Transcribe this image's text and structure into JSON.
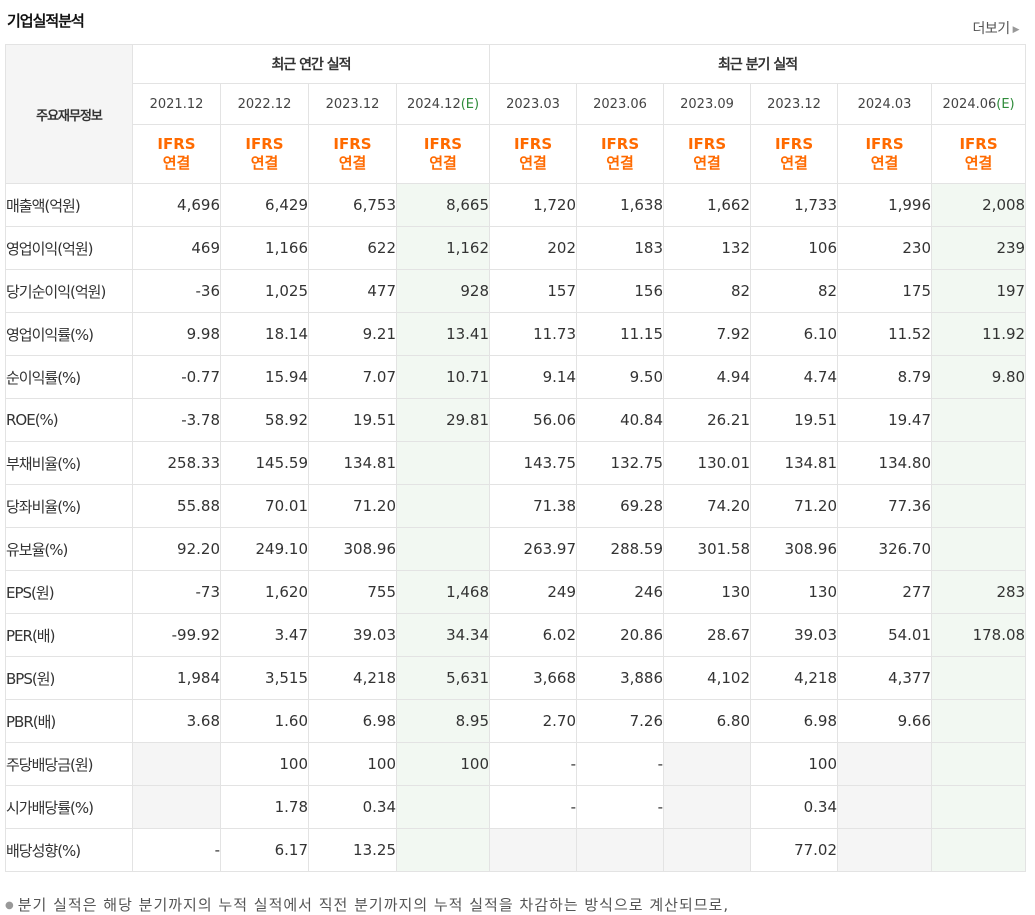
{
  "header": {
    "title": "기업실적분석",
    "more_label": "더보기"
  },
  "table": {
    "row_header": "주요재무정보",
    "groups": {
      "annual": "최근 연간 실적",
      "quarterly": "최근 분기 실적"
    },
    "periods": [
      "2021.12",
      "2022.12",
      "2023.12",
      "2024.12",
      "2023.03",
      "2023.06",
      "2023.09",
      "2023.12",
      "2024.03",
      "2024.06"
    ],
    "estimate_mark": "(E)",
    "ifrs_top": "IFRS",
    "ifrs_bottom": "연결",
    "rows": [
      {
        "label": "매출액(억원)",
        "values": [
          "4,696",
          "6,429",
          "6,753",
          "8,665",
          "1,720",
          "1,638",
          "1,662",
          "1,733",
          "1,996",
          "2,008"
        ]
      },
      {
        "label": "영업이익(억원)",
        "values": [
          "469",
          "1,166",
          "622",
          "1,162",
          "202",
          "183",
          "132",
          "106",
          "230",
          "239"
        ]
      },
      {
        "label": "당기순이익(억원)",
        "values": [
          "-36",
          "1,025",
          "477",
          "928",
          "157",
          "156",
          "82",
          "82",
          "175",
          "197"
        ]
      },
      {
        "label": "영업이익률(%)",
        "values": [
          "9.98",
          "18.14",
          "9.21",
          "13.41",
          "11.73",
          "11.15",
          "7.92",
          "6.10",
          "11.52",
          "11.92"
        ]
      },
      {
        "label": "순이익률(%)",
        "values": [
          "-0.77",
          "15.94",
          "7.07",
          "10.71",
          "9.14",
          "9.50",
          "4.94",
          "4.74",
          "8.79",
          "9.80"
        ]
      },
      {
        "label": "ROE(%)",
        "values": [
          "-3.78",
          "58.92",
          "19.51",
          "29.81",
          "56.06",
          "40.84",
          "26.21",
          "19.51",
          "19.47",
          ""
        ]
      },
      {
        "label": "부채비율(%)",
        "values": [
          "258.33",
          "145.59",
          "134.81",
          "",
          "143.75",
          "132.75",
          "130.01",
          "134.81",
          "134.80",
          ""
        ]
      },
      {
        "label": "당좌비율(%)",
        "values": [
          "55.88",
          "70.01",
          "71.20",
          "",
          "71.38",
          "69.28",
          "74.20",
          "71.20",
          "77.36",
          ""
        ]
      },
      {
        "label": "유보율(%)",
        "values": [
          "92.20",
          "249.10",
          "308.96",
          "",
          "263.97",
          "288.59",
          "301.58",
          "308.96",
          "326.70",
          ""
        ]
      },
      {
        "label": "EPS(원)",
        "values": [
          "-73",
          "1,620",
          "755",
          "1,468",
          "249",
          "246",
          "130",
          "130",
          "277",
          "283"
        ]
      },
      {
        "label": "PER(배)",
        "values": [
          "-99.92",
          "3.47",
          "39.03",
          "34.34",
          "6.02",
          "20.86",
          "28.67",
          "39.03",
          "54.01",
          "178.08"
        ]
      },
      {
        "label": "BPS(원)",
        "values": [
          "1,984",
          "3,515",
          "4,218",
          "5,631",
          "3,668",
          "3,886",
          "4,102",
          "4,218",
          "4,377",
          ""
        ]
      },
      {
        "label": "PBR(배)",
        "values": [
          "3.68",
          "1.60",
          "6.98",
          "8.95",
          "2.70",
          "7.26",
          "6.80",
          "6.98",
          "9.66",
          ""
        ]
      },
      {
        "label": "주당배당금(원)",
        "values": [
          "",
          "100",
          "100",
          "100",
          "-",
          "-",
          "",
          "100",
          "",
          ""
        ]
      },
      {
        "label": "시가배당률(%)",
        "values": [
          "",
          "1.78",
          "0.34",
          "",
          "-",
          "-",
          "",
          "0.34",
          "",
          ""
        ]
      },
      {
        "label": "배당성향(%)",
        "values": [
          "-",
          "6.17",
          "13.25",
          "",
          "",
          "",
          "",
          "77.02",
          "",
          ""
        ]
      }
    ]
  },
  "note": "분기 실적은 해당 분기까지의 누적 실적에서 직전 분기까지의 누적 실적을 차감하는 방식으로 계산되므로,",
  "colors": {
    "negative": "#e60012",
    "ifrs": "#ff6a00",
    "estimate_bg": "#f2f8f2",
    "estimate_text": "#2e8b3a"
  }
}
